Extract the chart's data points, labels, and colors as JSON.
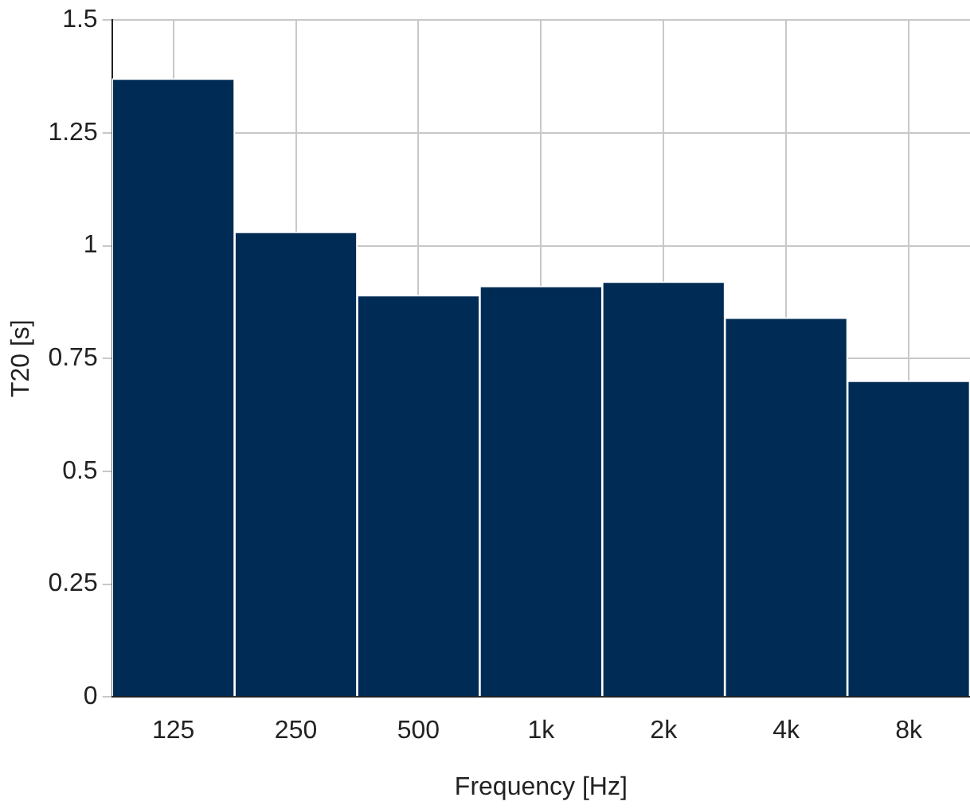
{
  "chart_data": {
    "type": "bar",
    "xlabel": "Frequency [Hz]",
    "ylabel": "T20 [s]",
    "categories": [
      "125",
      "250",
      "500",
      "1k",
      "2k",
      "4k",
      "8k"
    ],
    "values": [
      1.37,
      1.03,
      0.89,
      0.91,
      0.92,
      0.84,
      0.7
    ],
    "color": "#002b54",
    "ylim": [
      0,
      1.5
    ],
    "yticks": [
      0,
      0.25,
      0.5,
      0.75,
      1,
      1.25,
      1.5
    ],
    "grid": true,
    "legend": false
  }
}
